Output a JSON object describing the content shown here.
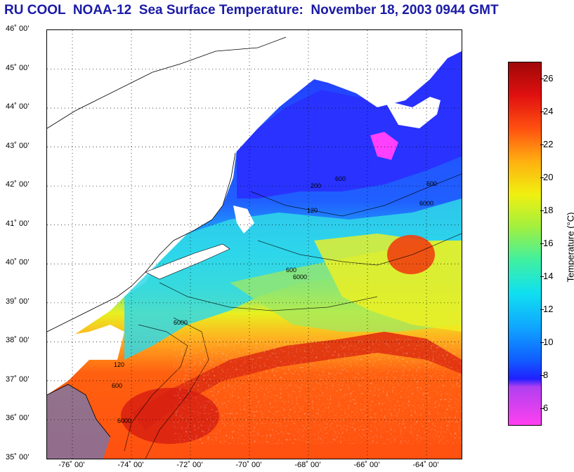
{
  "title": "RU COOL  NOAA-12  Sea Surface Temperature:  November 18, 2003 0944 GMT",
  "latitude_labels": [
    "46˚ 00’",
    "45˚ 00’",
    "44˚ 00’",
    "43˚ 00’",
    "42˚ 00’",
    "41˚ 00’",
    "40˚ 00’",
    "39˚ 00’",
    "38˚ 00’",
    "37˚ 00’",
    "36˚ 00’",
    "35˚ 00’"
  ],
  "longitude_labels": [
    "-76˚ 00’",
    "-74˚ 00’",
    "-72˚ 00’",
    "-70˚ 00’",
    "-68˚ 00’",
    "-66˚ 00’",
    "-64˚ 00’"
  ],
  "colorbar": {
    "label": "Temperature (°C)",
    "ticks": [
      "26",
      "24",
      "22",
      "20",
      "18",
      "16",
      "14",
      "12",
      "10",
      "8",
      "6"
    ],
    "range": [
      5,
      27
    ]
  },
  "contour_labels": [
    "600",
    "6000",
    "120",
    "200"
  ],
  "colors": {
    "land": "#ffffff",
    "title": "#1a1aa6",
    "cold_magenta": "#ff40ff",
    "cold_blue": "#2a3cff",
    "cyan": "#20d0ff",
    "yellow": "#f0f020",
    "orange": "#ff6a10",
    "red": "#d01010"
  }
}
